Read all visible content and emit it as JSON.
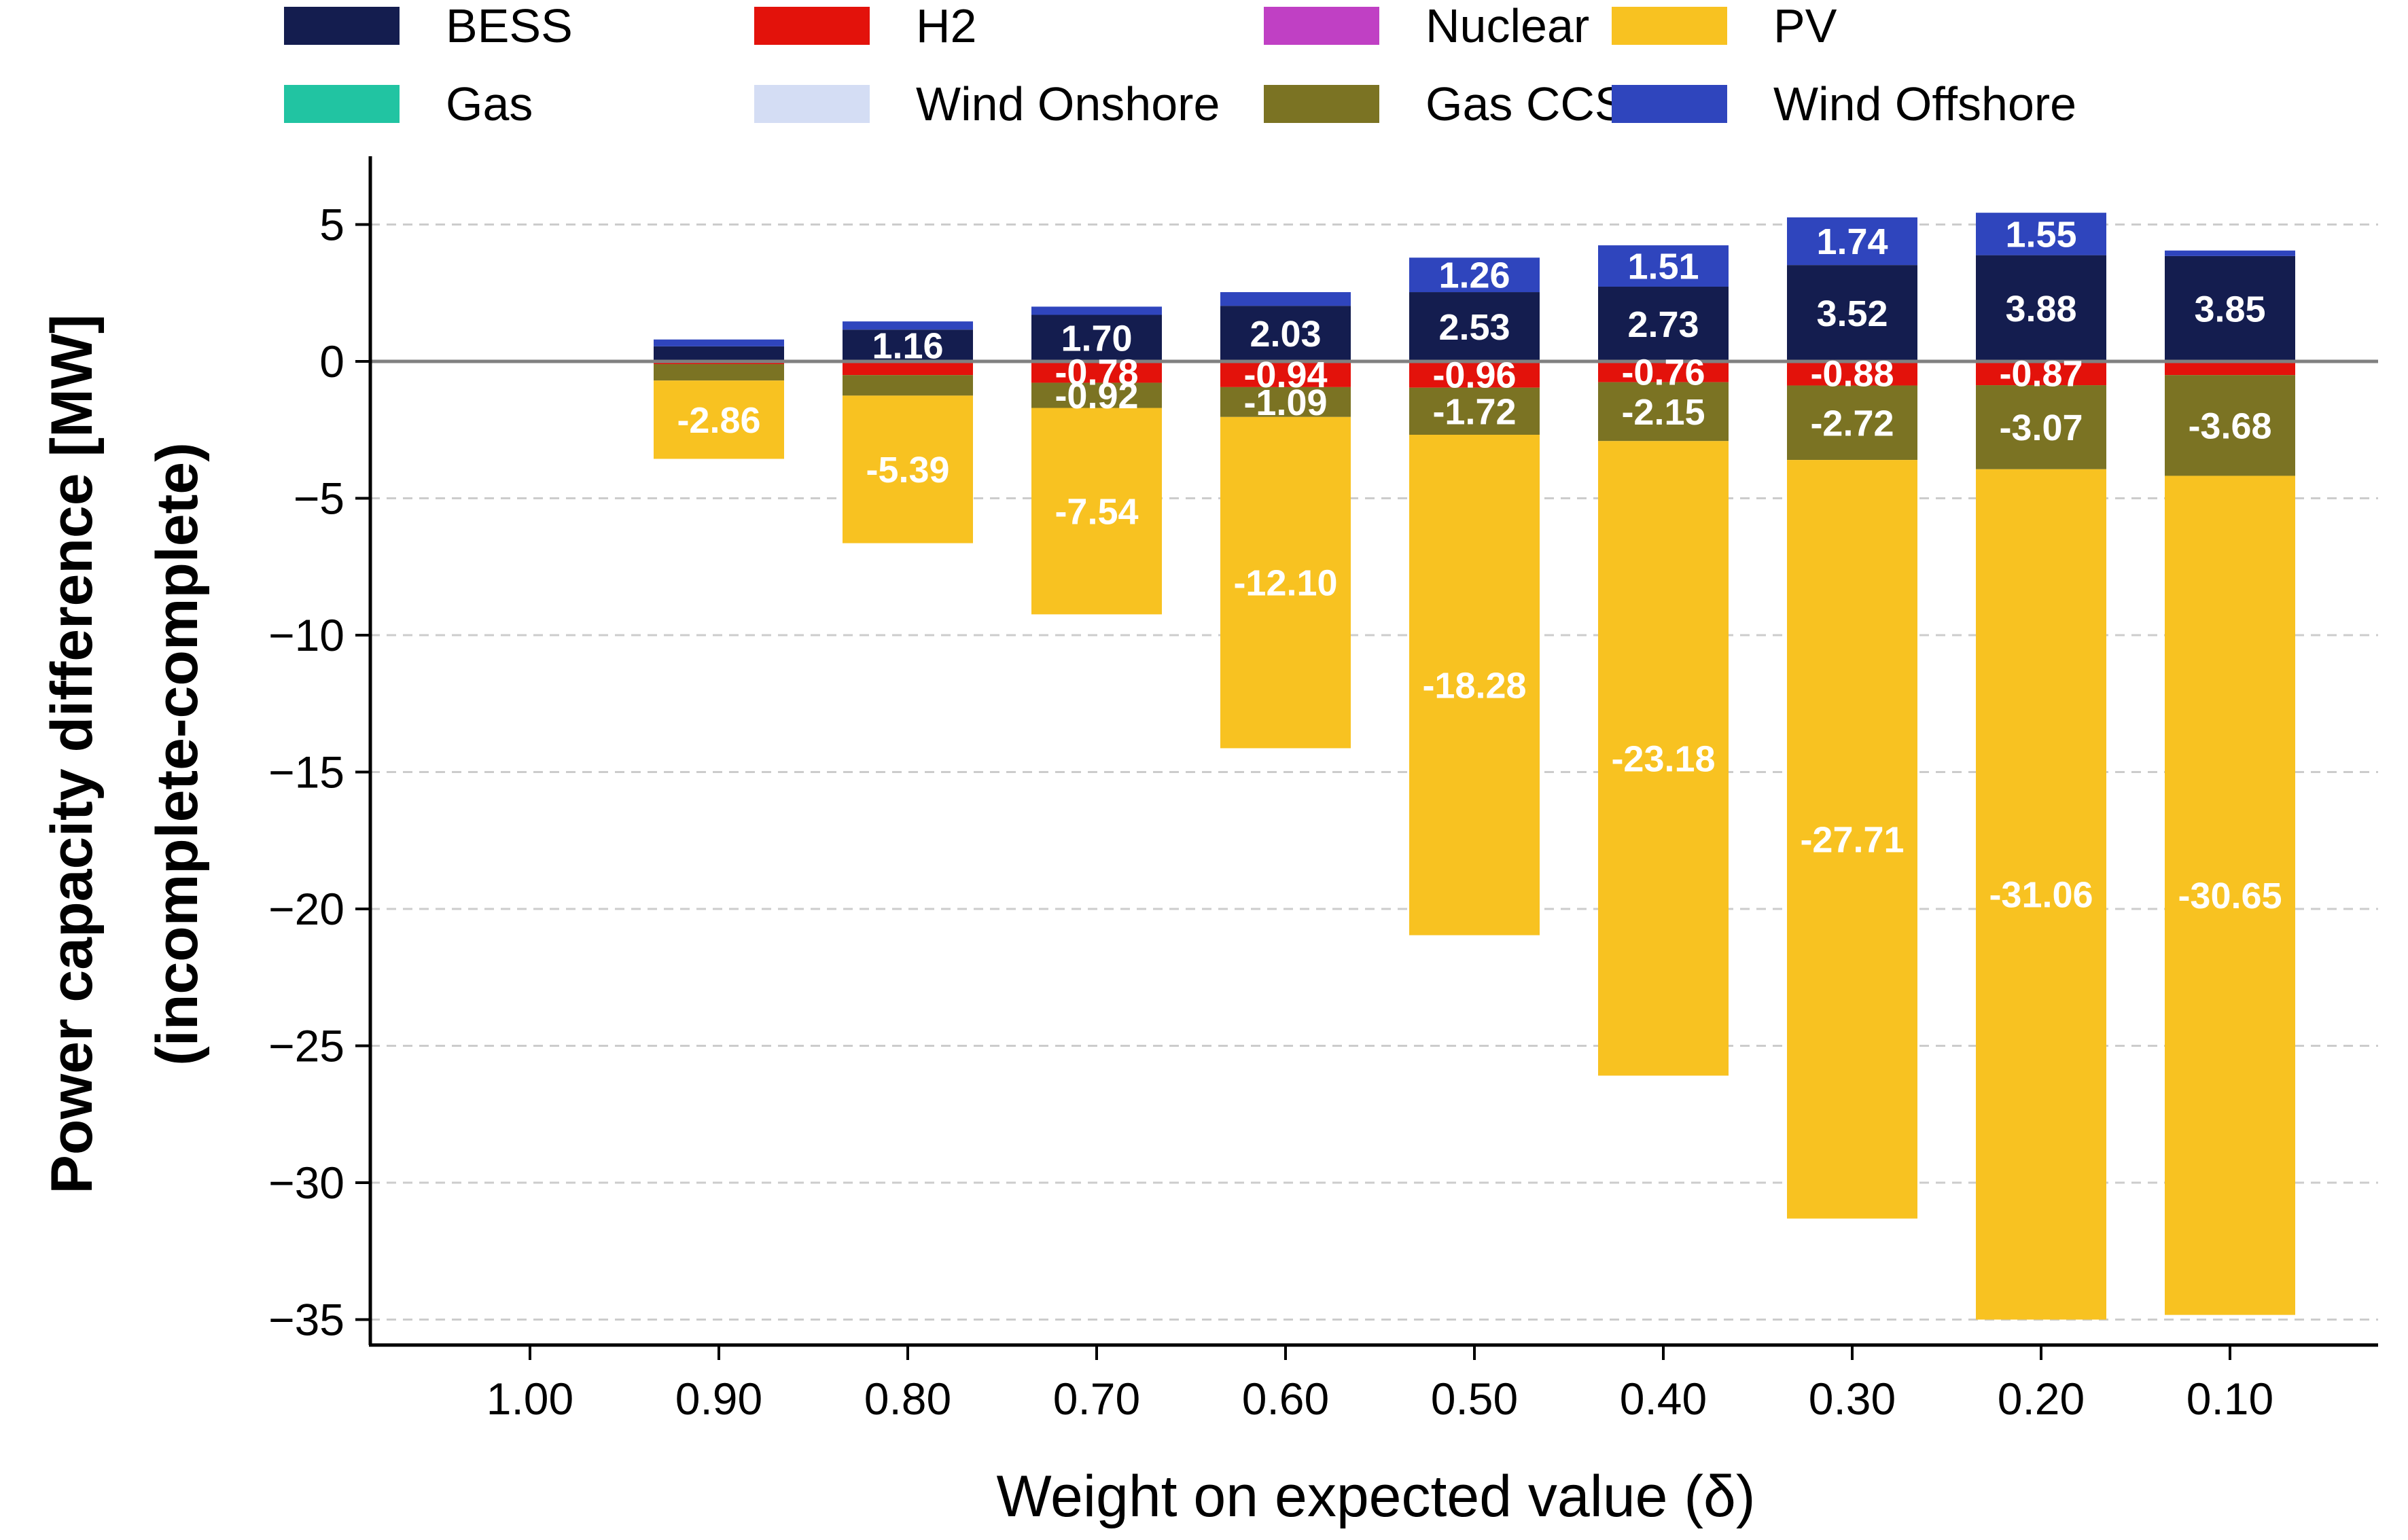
{
  "chart_data": {
    "type": "bar",
    "stacked": true,
    "xlabel": "Weight on expected value (δ)",
    "ylabel": [
      "Power capacity difference [MW]",
      "(incomplete-complete)"
    ],
    "ylim": [
      -36,
      7.5
    ],
    "yticks": [
      5,
      0,
      -5,
      -10,
      -15,
      -20,
      -25,
      -30,
      -35
    ],
    "ytick_labels": [
      "5",
      "0",
      "−5",
      "−10",
      "−15",
      "−20",
      "−25",
      "−30",
      "−35"
    ],
    "grid": "horizontal dashed",
    "legend_position": "top",
    "categories": [
      "1.00",
      "0.90",
      "0.80",
      "0.70",
      "0.60",
      "0.50",
      "0.40",
      "0.30",
      "0.20",
      "0.10"
    ],
    "series": [
      {
        "name": "BESS",
        "color": "#141d4f",
        "values": [
          0,
          0.55,
          1.16,
          1.7,
          2.03,
          2.53,
          2.73,
          3.52,
          3.88,
          3.85
        ],
        "labels": [
          "",
          "",
          "1.16",
          "1.70",
          "2.03",
          "2.53",
          "2.73",
          "3.52",
          "3.88",
          "3.85"
        ]
      },
      {
        "name": "Gas",
        "color": "#21c4a2",
        "values": [
          0,
          0,
          0,
          0,
          0,
          0,
          0,
          0,
          0,
          0
        ],
        "labels": [
          "",
          "",
          "",
          "",
          "",
          "",
          "",
          "",
          "",
          ""
        ]
      },
      {
        "name": "H2",
        "color": "#e3120b",
        "values": [
          0,
          -0.1,
          -0.5,
          -0.78,
          -0.94,
          -0.96,
          -0.76,
          -0.88,
          -0.87,
          -0.5
        ],
        "labels": [
          "",
          "",
          "",
          "-0.78",
          "-0.94",
          "-0.96",
          "-0.76",
          "-0.88",
          "-0.87",
          ""
        ]
      },
      {
        "name": "Wind Onshore",
        "color": "#d4ddf4",
        "values": [
          0,
          0,
          0,
          0,
          0,
          0,
          0,
          0,
          0,
          0
        ],
        "labels": [
          "",
          "",
          "",
          "",
          "",
          "",
          "",
          "",
          "",
          ""
        ]
      },
      {
        "name": "Nuclear",
        "color": "#c040c4",
        "values": [
          0,
          0,
          0,
          0,
          0,
          0,
          0,
          0,
          0,
          0
        ],
        "labels": [
          "",
          "",
          "",
          "",
          "",
          "",
          "",
          "",
          "",
          ""
        ]
      },
      {
        "name": "Gas CCS",
        "color": "#7b7323",
        "values": [
          0,
          -0.6,
          -0.75,
          -0.92,
          -1.09,
          -1.72,
          -2.15,
          -2.72,
          -3.07,
          -3.68
        ],
        "labels": [
          "",
          "",
          "",
          "-0.92",
          "-1.09",
          "-1.72",
          "-2.15",
          "-2.72",
          "-3.07",
          "-3.68"
        ]
      },
      {
        "name": "PV",
        "color": "#f8c221",
        "values": [
          0,
          -2.86,
          -5.39,
          -7.54,
          -12.1,
          -18.28,
          -23.18,
          -27.71,
          -31.06,
          -30.65
        ],
        "labels": [
          "",
          "-2.86",
          "-5.39",
          "-7.54",
          "-12.10",
          "-18.28",
          "-23.18",
          "-27.71",
          "-31.06",
          "-30.65"
        ]
      },
      {
        "name": "Wind Offshore",
        "color": "#2f45bd",
        "values": [
          0,
          0.25,
          0.3,
          0.3,
          0.5,
          1.26,
          1.51,
          1.74,
          1.55,
          0.2
        ],
        "labels": [
          "",
          "",
          "",
          "",
          "",
          "1.26",
          "1.51",
          "1.74",
          "1.55",
          ""
        ]
      }
    ]
  }
}
